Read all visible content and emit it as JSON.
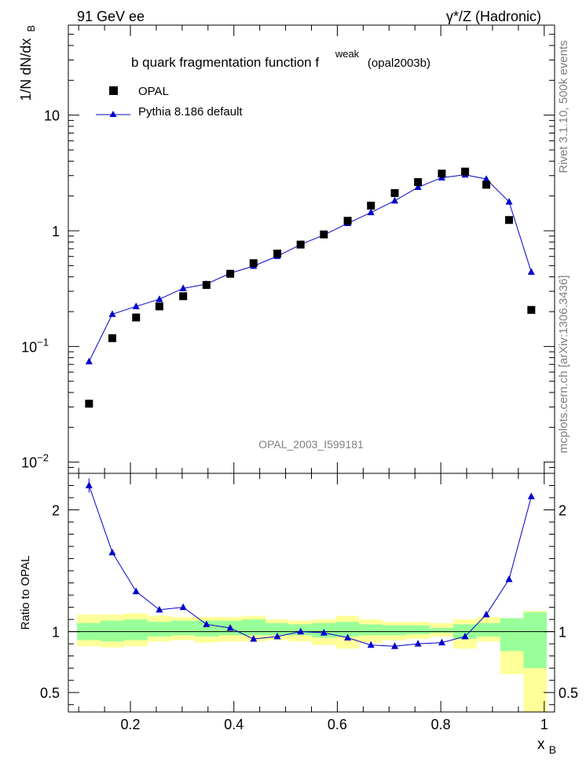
{
  "header": {
    "left": "91 GeV ee",
    "right": "γ*/Z (Hadronic)"
  },
  "side_labels": {
    "rivet": "Rivet 3.1.10,  500k events",
    "mcplots": "mcplots.cern.ch [arXiv:1306.3436]"
  },
  "chart_data": [
    {
      "type": "scatter",
      "panel": "main",
      "title_main": "b quark fragmentation function f",
      "title_sup": "weak",
      "title_tail": "(opal2003b)",
      "analysis_label": "OPAL_2003_I599181",
      "ylabel_main": "1/N dN/dx",
      "ylabel_sub": "B",
      "yscale": "log",
      "xlim": [
        0.08,
        1.02
      ],
      "ylim": [
        0.008,
        60
      ],
      "y_ticks": [
        {
          "value": 0.01,
          "label": "10",
          "sup": "−2"
        },
        {
          "value": 0.1,
          "label": "10",
          "sup": "−1"
        },
        {
          "value": 1,
          "label": "1",
          "sup": ""
        },
        {
          "value": 10,
          "label": "10",
          "sup": ""
        }
      ],
      "legend_position": "top-left",
      "legend": [
        {
          "label": "OPAL",
          "marker": "square",
          "color": "#000000"
        },
        {
          "label": "Pythia 8.186 default",
          "marker": "triangle-line",
          "color": "#0000cc"
        }
      ],
      "x": [
        0.12,
        0.165,
        0.211,
        0.256,
        0.302,
        0.347,
        0.393,
        0.438,
        0.484,
        0.529,
        0.574,
        0.62,
        0.665,
        0.711,
        0.756,
        0.802,
        0.847,
        0.888,
        0.932,
        0.975
      ],
      "series": [
        {
          "name": "OPAL",
          "values": [
            0.032,
            0.118,
            0.178,
            0.222,
            0.272,
            0.34,
            0.425,
            0.525,
            0.635,
            0.76,
            0.93,
            1.22,
            1.65,
            2.12,
            2.64,
            3.12,
            3.25,
            2.5,
            1.24,
            0.207
          ]
        },
        {
          "name": "Pythia 8.186 default",
          "values": [
            0.074,
            0.19,
            0.222,
            0.256,
            0.318,
            0.346,
            0.43,
            0.495,
            0.603,
            0.76,
            0.92,
            1.16,
            1.44,
            1.82,
            2.38,
            2.88,
            3.05,
            2.8,
            1.78,
            0.44
          ]
        }
      ]
    },
    {
      "type": "line",
      "panel": "ratio",
      "ylabel": "Ratio to OPAL",
      "xlabel_main": "x",
      "xlabel_sub": "B",
      "xlim": [
        0.08,
        1.02
      ],
      "ylim": [
        0.34,
        2.3
      ],
      "x_ticks": [
        {
          "value": 0.2,
          "label": "0.2"
        },
        {
          "value": 0.4,
          "label": "0.4"
        },
        {
          "value": 0.6,
          "label": "0.6"
        },
        {
          "value": 0.8,
          "label": "0.8"
        },
        {
          "value": 1.0,
          "label": "1"
        }
      ],
      "y_ticks": [
        {
          "value": 0.5,
          "label": "0.5"
        },
        {
          "value": 1,
          "label": "1"
        },
        {
          "value": 2,
          "label": "2"
        }
      ],
      "reference_line": 1,
      "band_edges": [
        0.097,
        0.142,
        0.188,
        0.233,
        0.279,
        0.324,
        0.37,
        0.415,
        0.461,
        0.506,
        0.551,
        0.597,
        0.642,
        0.688,
        0.733,
        0.779,
        0.824,
        0.87,
        0.915,
        0.96,
        1.005
      ],
      "band_stat": {
        "low": [
          0.93,
          0.92,
          0.93,
          0.96,
          0.97,
          0.96,
          0.97,
          0.97,
          0.97,
          0.97,
          0.95,
          0.96,
          0.97,
          0.97,
          0.98,
          0.99,
          0.94,
          0.96,
          0.84,
          0.7
        ],
        "high": [
          1.07,
          1.09,
          1.1,
          1.08,
          1.09,
          1.09,
          1.09,
          1.1,
          1.07,
          1.06,
          1.07,
          1.08,
          1.06,
          1.05,
          1.05,
          1.03,
          1.06,
          1.07,
          1.11,
          1.16
        ]
      },
      "band_total": {
        "low": [
          0.88,
          0.87,
          0.88,
          0.92,
          0.93,
          0.91,
          0.92,
          0.92,
          0.93,
          0.92,
          0.89,
          0.86,
          0.91,
          0.93,
          0.94,
          0.96,
          0.86,
          0.92,
          0.65,
          0.34
        ],
        "high": [
          1.14,
          1.14,
          1.15,
          1.13,
          1.12,
          1.12,
          1.12,
          1.13,
          1.1,
          1.09,
          1.1,
          1.13,
          1.1,
          1.08,
          1.08,
          1.07,
          1.1,
          1.12,
          1.1,
          1.17
        ]
      },
      "series": [
        {
          "name": "Pythia 8.186 default / OPAL",
          "x": [
            0.12,
            0.165,
            0.211,
            0.256,
            0.302,
            0.347,
            0.393,
            0.438,
            0.484,
            0.529,
            0.574,
            0.62,
            0.665,
            0.711,
            0.756,
            0.802,
            0.847,
            0.888,
            0.932,
            0.975
          ],
          "values": [
            2.2,
            1.65,
            1.33,
            1.18,
            1.2,
            1.06,
            1.03,
            0.94,
            0.96,
            1.0,
            0.99,
            0.95,
            0.89,
            0.88,
            0.9,
            0.91,
            0.96,
            1.14,
            1.43,
            2.11
          ]
        }
      ]
    }
  ]
}
